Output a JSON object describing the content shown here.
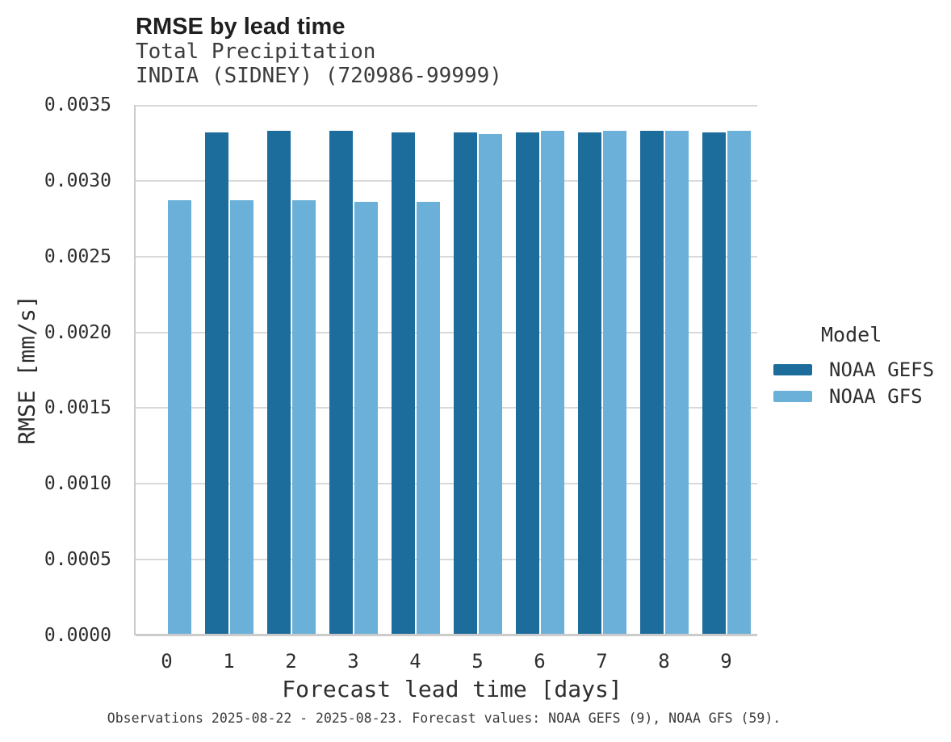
{
  "chart_data": {
    "type": "bar",
    "title": "RMSE by lead time",
    "subtitle_lines": [
      "Total Precipitation",
      "INDIA (SIDNEY) (720986-99999)"
    ],
    "xlabel": "Forecast lead time [days]",
    "ylabel": "RMSE [mm/s]",
    "categories": [
      "0",
      "1",
      "2",
      "3",
      "4",
      "5",
      "6",
      "7",
      "8",
      "9"
    ],
    "series": [
      {
        "name": "NOAA GEFS",
        "color": "#1C6D9C",
        "values": [
          null,
          0.00332,
          0.00333,
          0.00333,
          0.00332,
          0.00332,
          0.00332,
          0.00332,
          0.00333,
          0.00332
        ]
      },
      {
        "name": "NOAA GFS",
        "color": "#6BB0D8",
        "values": [
          0.00287,
          0.00287,
          0.00287,
          0.00286,
          0.00286,
          0.00331,
          0.00333,
          0.00333,
          0.00333,
          0.00333
        ]
      }
    ],
    "ylim": [
      0,
      0.0035
    ],
    "yticks": [
      {
        "value": 0.0,
        "label": "0.0000"
      },
      {
        "value": 0.0005,
        "label": "0.0005"
      },
      {
        "value": 0.001,
        "label": "0.0010"
      },
      {
        "value": 0.0015,
        "label": "0.0015"
      },
      {
        "value": 0.002,
        "label": "0.0020"
      },
      {
        "value": 0.0025,
        "label": "0.0025"
      },
      {
        "value": 0.003,
        "label": "0.0030"
      },
      {
        "value": 0.0035,
        "label": "0.0035"
      }
    ],
    "grid": true,
    "grid_color": "#D9D9D9",
    "axis_color": "#CBCBCB",
    "legend": {
      "title": "Model",
      "position": "right"
    },
    "caption": "Observations 2025-08-22 - 2025-08-23. Forecast values: NOAA GEFS (9), NOAA GFS (59)."
  }
}
